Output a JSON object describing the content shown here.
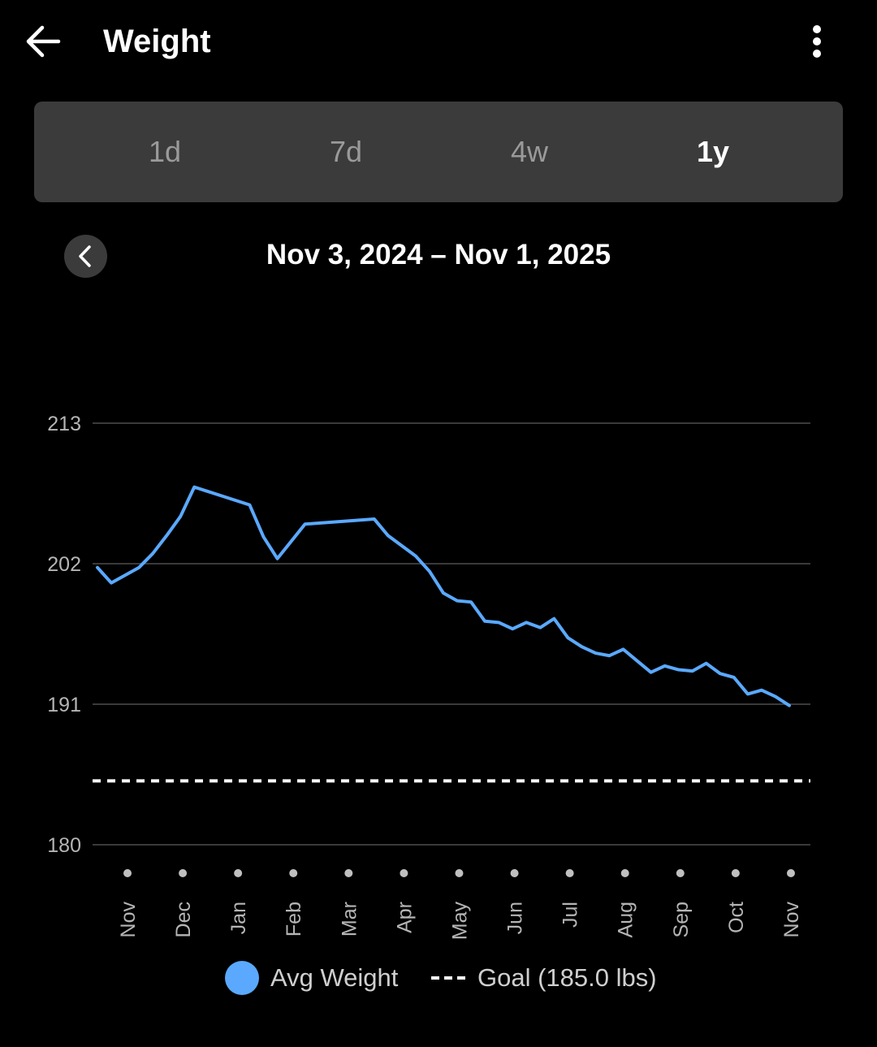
{
  "header": {
    "title": "Weight",
    "back_icon": "arrow-left-icon",
    "menu_icon": "more-vertical-icon"
  },
  "tabs": [
    {
      "label": "1d",
      "selected": false
    },
    {
      "label": "7d",
      "selected": false
    },
    {
      "label": "4w",
      "selected": false
    },
    {
      "label": "1y",
      "selected": true
    }
  ],
  "date_range": {
    "label": "Nov 3, 2024 – Nov 1, 2025",
    "prev_icon": "chevron-left-icon"
  },
  "colors": {
    "series": "#5aa9ff",
    "goal": "#ffffff",
    "grid": "#3a3a3a",
    "panel": "#3b3b3b"
  },
  "legend": {
    "avg_label": "Avg Weight",
    "goal_label": "Goal (185.0 lbs)"
  },
  "chart_data": {
    "type": "line",
    "title": "",
    "xlabel": "",
    "ylabel": "",
    "ylim": [
      180,
      213
    ],
    "yticks": [
      213,
      202,
      191,
      180
    ],
    "xtick_labels": [
      "Nov",
      "Dec",
      "Jan",
      "Feb",
      "Mar",
      "Apr",
      "May",
      "Jun",
      "Jul",
      "Aug",
      "Sep",
      "Oct",
      "Nov"
    ],
    "grid": true,
    "legend_position": "bottom",
    "goal": 185.0,
    "series": [
      {
        "name": "Avg Weight",
        "points": [
          [
            "2024-11-03",
            201.7
          ],
          [
            "2024-11-10",
            200.5
          ],
          [
            "2024-11-24",
            201.7
          ],
          [
            "2024-12-01",
            202.8
          ],
          [
            "2024-12-08",
            204.2
          ],
          [
            "2024-12-15",
            205.7
          ],
          [
            "2024-12-22",
            208.0
          ],
          [
            "2025-01-05",
            207.3
          ],
          [
            "2025-01-19",
            206.6
          ],
          [
            "2025-01-26",
            204.1
          ],
          [
            "2025-02-02",
            202.4
          ],
          [
            "2025-02-16",
            205.1
          ],
          [
            "2025-03-23",
            205.5
          ],
          [
            "2025-03-30",
            204.2
          ],
          [
            "2025-04-13",
            202.6
          ],
          [
            "2025-04-20",
            201.4
          ],
          [
            "2025-04-27",
            199.7
          ],
          [
            "2025-05-04",
            199.1
          ],
          [
            "2025-05-11",
            199.0
          ],
          [
            "2025-05-18",
            197.5
          ],
          [
            "2025-05-25",
            197.4
          ],
          [
            "2025-06-01",
            196.9
          ],
          [
            "2025-06-08",
            197.4
          ],
          [
            "2025-06-15",
            197.0
          ],
          [
            "2025-06-22",
            197.7
          ],
          [
            "2025-06-29",
            196.2
          ],
          [
            "2025-07-06",
            195.5
          ],
          [
            "2025-07-13",
            195.0
          ],
          [
            "2025-07-20",
            194.8
          ],
          [
            "2025-07-27",
            195.3
          ],
          [
            "2025-08-03",
            194.4
          ],
          [
            "2025-08-10",
            193.5
          ],
          [
            "2025-08-17",
            194.0
          ],
          [
            "2025-08-24",
            193.7
          ],
          [
            "2025-08-31",
            193.6
          ],
          [
            "2025-09-07",
            194.2
          ],
          [
            "2025-09-14",
            193.4
          ],
          [
            "2025-09-21",
            193.1
          ],
          [
            "2025-09-28",
            191.8
          ],
          [
            "2025-10-05",
            192.1
          ],
          [
            "2025-10-12",
            191.6
          ],
          [
            "2025-10-19",
            190.9
          ]
        ]
      }
    ]
  }
}
